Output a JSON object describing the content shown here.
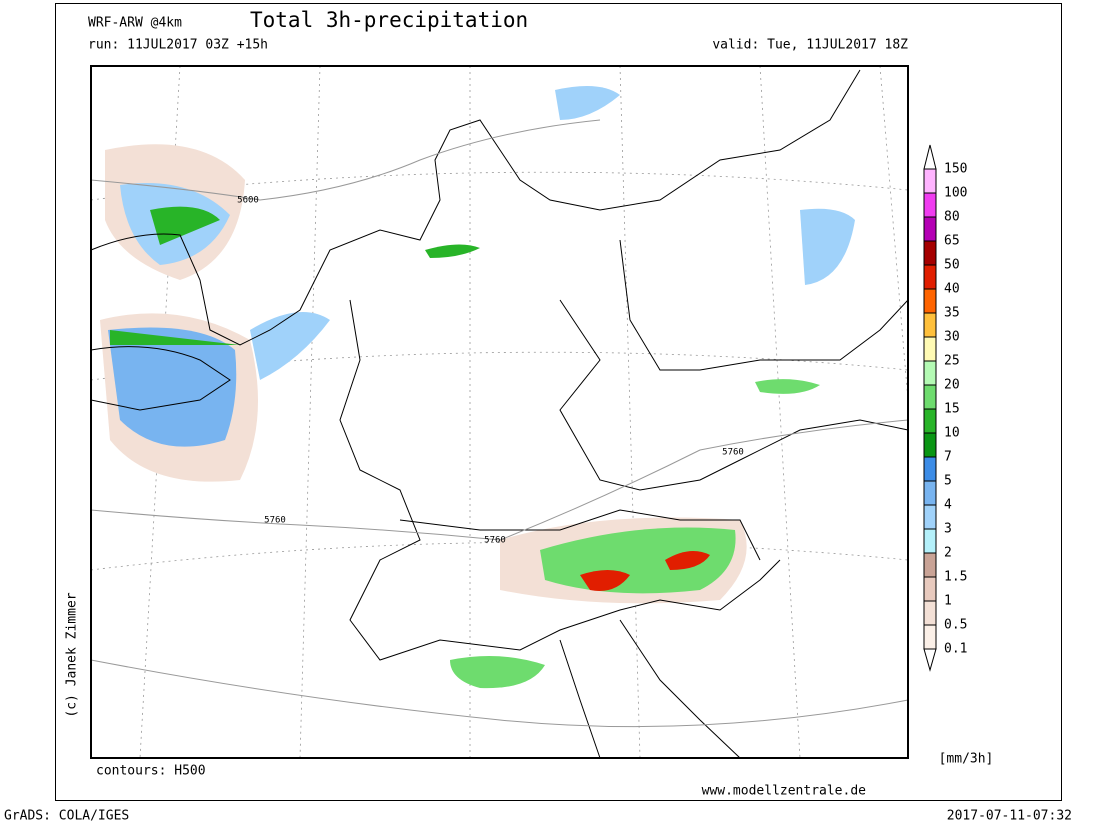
{
  "header": {
    "model": "WRF-ARW @4km",
    "title": "Total 3h-precipitation",
    "run": "run: 11JUL2017 03Z +15h",
    "valid": "valid: Tue, 11JUL2017 18Z"
  },
  "map": {
    "contour_labels": [
      "5600",
      "5760",
      "5760",
      "5760"
    ],
    "copyright": "(c) Janek Zimmer",
    "contours_note": "contours: H500",
    "website": "www.modellzentrale.de"
  },
  "legend": {
    "unit": "[mm/3h]",
    "levels": [
      0.1,
      0.5,
      1,
      1.5,
      2,
      3,
      4,
      5,
      7,
      10,
      15,
      20,
      25,
      30,
      35,
      40,
      50,
      65,
      80,
      100,
      150
    ],
    "colors": [
      "#ffffff",
      "#fbf0e8",
      "#f3e0d6",
      "#e8cabe",
      "#c9a396",
      "#b4f0fa",
      "#a0d2fa",
      "#78b4f0",
      "#3c8ce6",
      "#0a9614",
      "#28b428",
      "#6edc6e",
      "#b4fab4",
      "#fffab4",
      "#ffc03c",
      "#ff6400",
      "#e11e00",
      "#a50000",
      "#b400b4",
      "#f03cf0",
      "#ffb4ff",
      "#ffffff"
    ]
  },
  "footer": {
    "software": "GrADS: COLA/IGES",
    "timestamp": "2017-07-11-07:32"
  }
}
